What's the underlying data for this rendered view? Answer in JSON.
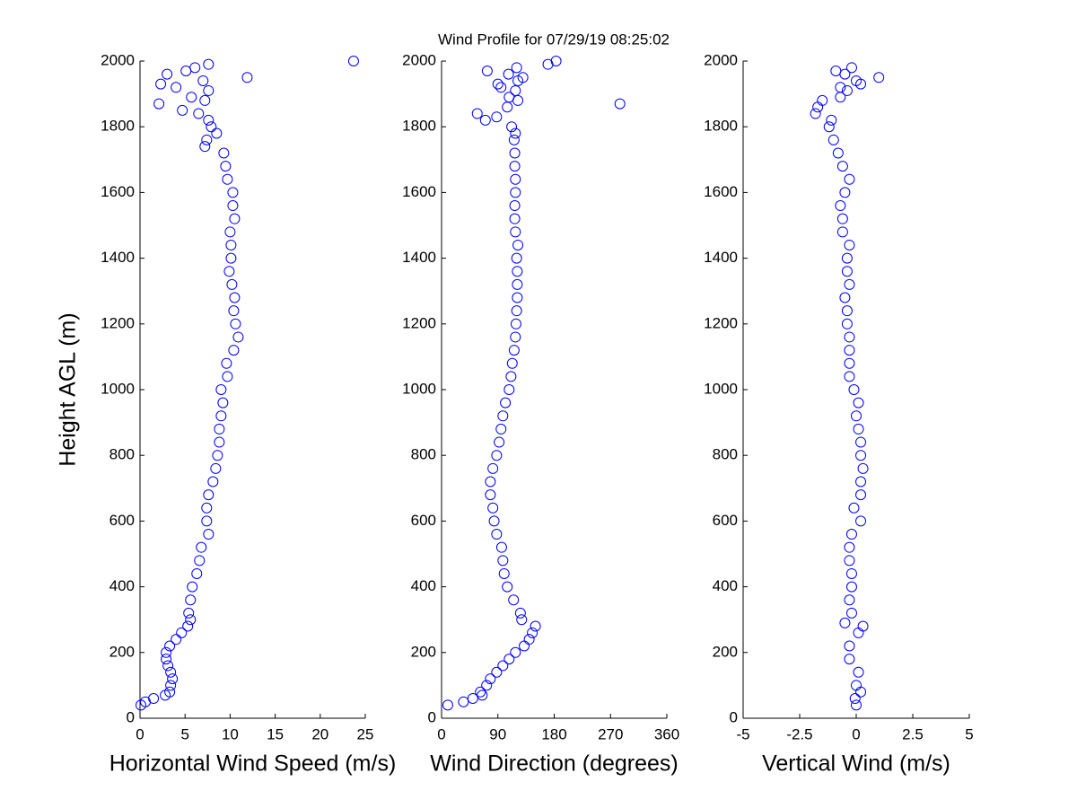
{
  "title": "Wind Profile for  07/29/19 08:25:02",
  "chart_data": [
    {
      "type": "scatter",
      "xlabel": "Horizontal Wind Speed (m/s)",
      "ylabel": "Height AGL (m)",
      "color": "#0000ff",
      "xlim": [
        0,
        25
      ],
      "xticks": [
        0,
        5,
        10,
        15,
        20,
        25
      ],
      "ylim": [
        0,
        2000
      ],
      "yticks": [
        0,
        200,
        400,
        600,
        800,
        1000,
        1200,
        1400,
        1600,
        1800,
        2000
      ],
      "x": [
        0.1,
        0.6,
        1.5,
        2.8,
        3.3,
        3.4,
        3.6,
        3.4,
        3.1,
        2.9,
        2.9,
        3.3,
        4.0,
        4.6,
        5.3,
        5.6,
        5.4,
        5.6,
        5.8,
        6.3,
        6.6,
        6.8,
        7.6,
        7.4,
        7.4,
        7.6,
        8.1,
        8.4,
        8.6,
        8.8,
        8.8,
        9.0,
        9.2,
        9.0,
        9.7,
        9.6,
        10.4,
        10.9,
        10.6,
        10.4,
        10.5,
        10.2,
        9.9,
        10.1,
        10.1,
        10.0,
        10.5,
        10.3,
        10.3,
        9.7,
        9.5,
        9.3,
        7.2,
        7.4,
        8.5,
        7.9,
        7.6,
        6.5,
        4.7,
        2.1,
        7.2,
        5.7,
        7.6,
        4.0,
        2.3,
        7.0,
        11.9,
        3.0,
        5.1,
        6.1,
        7.6,
        23.7
      ],
      "y": [
        40,
        50,
        60,
        70,
        80,
        100,
        120,
        140,
        160,
        180,
        200,
        220,
        240,
        260,
        280,
        300,
        320,
        360,
        400,
        440,
        480,
        520,
        560,
        600,
        640,
        680,
        720,
        760,
        800,
        840,
        880,
        920,
        960,
        1000,
        1040,
        1080,
        1120,
        1160,
        1200,
        1240,
        1280,
        1320,
        1360,
        1400,
        1440,
        1480,
        1520,
        1560,
        1600,
        1640,
        1680,
        1720,
        1740,
        1760,
        1780,
        1800,
        1820,
        1840,
        1850,
        1870,
        1880,
        1890,
        1910,
        1920,
        1930,
        1940,
        1950,
        1960,
        1970,
        1980,
        1990,
        2000
      ]
    },
    {
      "type": "scatter",
      "xlabel": "Wind Direction (degrees)",
      "color": "#0000ff",
      "xlim": [
        0,
        360
      ],
      "xticks": [
        0,
        90,
        180,
        270,
        360
      ],
      "ylim": [
        0,
        2000
      ],
      "yticks": [
        0,
        200,
        400,
        600,
        800,
        1000,
        1200,
        1400,
        1600,
        1800,
        2000
      ],
      "x": [
        10,
        35,
        50,
        65,
        62,
        72,
        78,
        88,
        98,
        108,
        118,
        132,
        140,
        145,
        150,
        128,
        126,
        115,
        105,
        100,
        98,
        96,
        88,
        84,
        82,
        78,
        78,
        82,
        88,
        92,
        95,
        98,
        102,
        108,
        111,
        113,
        116,
        118,
        119,
        120,
        121,
        121,
        121,
        120,
        122,
        118,
        117,
        117,
        118,
        118,
        117,
        117,
        116,
        118,
        112,
        70,
        88,
        57,
        105,
        285,
        122,
        108,
        118,
        95,
        90,
        122,
        130,
        107,
        73,
        120,
        170,
        183
      ],
      "y": [
        40,
        50,
        60,
        70,
        80,
        100,
        120,
        140,
        160,
        180,
        200,
        220,
        240,
        260,
        280,
        300,
        320,
        360,
        400,
        440,
        480,
        520,
        560,
        600,
        640,
        680,
        720,
        760,
        800,
        840,
        880,
        920,
        960,
        1000,
        1040,
        1080,
        1120,
        1160,
        1200,
        1240,
        1280,
        1320,
        1360,
        1400,
        1440,
        1480,
        1520,
        1560,
        1600,
        1640,
        1680,
        1720,
        1760,
        1780,
        1800,
        1820,
        1830,
        1840,
        1860,
        1870,
        1880,
        1890,
        1910,
        1920,
        1930,
        1940,
        1950,
        1960,
        1970,
        1980,
        1990,
        2000
      ]
    },
    {
      "type": "scatter",
      "xlabel": "Vertical Wind (m/s)",
      "color": "#0000ff",
      "xlim": [
        -5,
        5
      ],
      "xticks": [
        -5,
        -2.5,
        0,
        2.5,
        5
      ],
      "ylim": [
        0,
        2000
      ],
      "yticks": [
        0,
        200,
        400,
        600,
        800,
        1000,
        1200,
        1400,
        1600,
        1800,
        2000
      ],
      "x": [
        0,
        -0.05,
        0.2,
        0,
        0.1,
        -0.3,
        -0.3,
        0.1,
        0.3,
        -0.5,
        -0.2,
        -0.3,
        -0.2,
        -0.2,
        -0.3,
        -0.3,
        -0.2,
        0.2,
        -0.1,
        0.2,
        0.2,
        0.3,
        0.2,
        0.2,
        0.1,
        0,
        0.1,
        -0.1,
        -0.3,
        -0.3,
        -0.3,
        -0.3,
        -0.4,
        -0.4,
        -0.5,
        -0.3,
        -0.4,
        -0.4,
        -0.3,
        -0.6,
        -0.6,
        -0.7,
        -0.5,
        -0.3,
        -0.6,
        -0.8,
        -1.0,
        -1.2,
        -1.1,
        -1.8,
        -1.7,
        -1.5,
        -0.7,
        -0.4,
        -0.7,
        0.2,
        0.0,
        1.0,
        -0.5,
        -0.9,
        -0.2
      ],
      "y": [
        40,
        60,
        80,
        100,
        140,
        180,
        220,
        260,
        280,
        290,
        320,
        360,
        400,
        440,
        480,
        520,
        560,
        600,
        640,
        680,
        720,
        760,
        800,
        840,
        880,
        920,
        960,
        1000,
        1040,
        1080,
        1120,
        1160,
        1200,
        1240,
        1280,
        1320,
        1360,
        1400,
        1440,
        1480,
        1520,
        1560,
        1600,
        1640,
        1680,
        1720,
        1760,
        1800,
        1820,
        1840,
        1860,
        1880,
        1890,
        1910,
        1920,
        1930,
        1940,
        1950,
        1960,
        1970,
        1980
      ]
    }
  ]
}
